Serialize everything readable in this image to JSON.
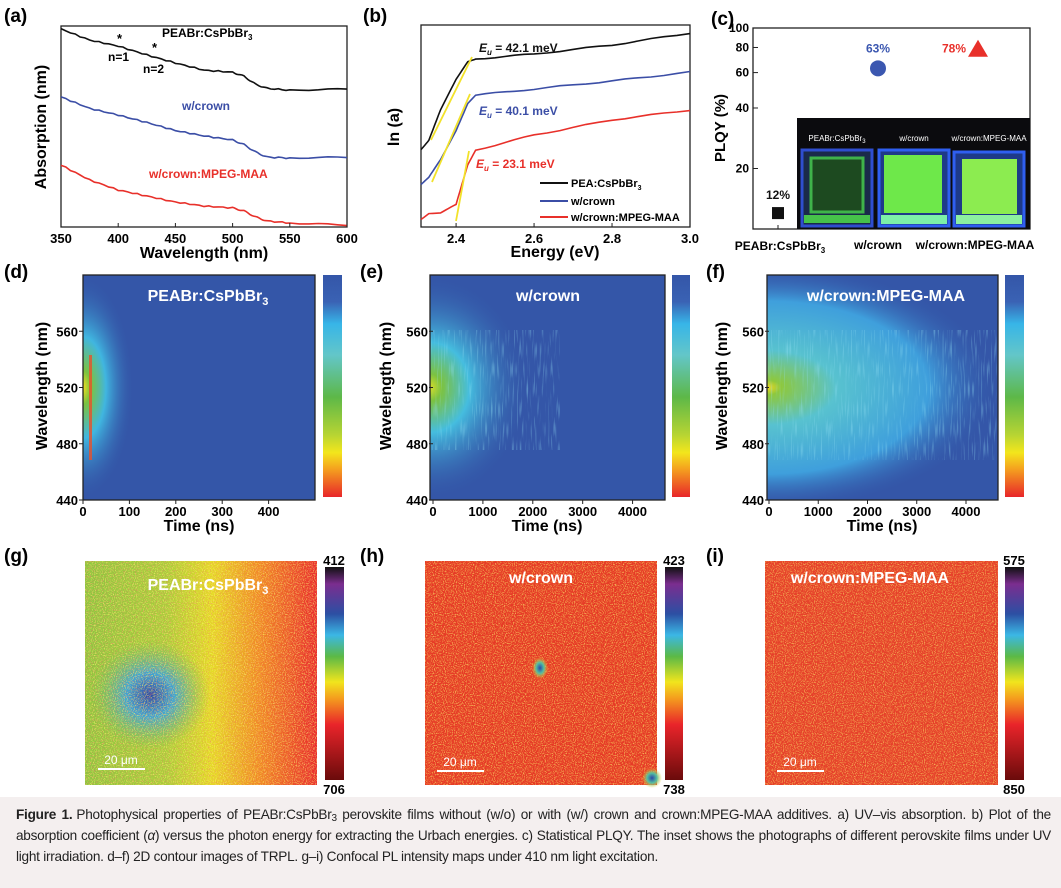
{
  "figure": {
    "panel_labels": [
      "(a)",
      "(b)",
      "(c)",
      "(d)",
      "(e)",
      "(f)",
      "(g)",
      "(h)",
      "(i)"
    ],
    "sample_names": {
      "pristine": {
        "main": "PEABr:CsPbBr",
        "sub": "3"
      },
      "crown": "w/crown",
      "crown_mpeg": "w/crown:MPEG-MAA"
    },
    "colors": {
      "pristine": "#111111",
      "crown": "#3b4ea6",
      "crown_mpeg": "#e8302a",
      "fit": "#f2e22a"
    }
  },
  "chart_data": [
    {
      "id": "a",
      "type": "line",
      "xlabel": "Wavelength (nm)",
      "ylabel": "Absorption (nm)",
      "xlim": [
        350,
        600
      ],
      "xticks": [
        "350",
        "400",
        "450",
        "500",
        "550",
        "600"
      ],
      "ylim": [
        0,
        1
      ],
      "annotations": {
        "star": "*",
        "n1": "n=1",
        "n2": "n=2",
        "title": {
          "main": "PEABr:CsPbBr",
          "sub": "3"
        },
        "crown": "w/crown",
        "crown_mpeg": "w/crown:MPEG-MAA"
      },
      "x": [
        350,
        375,
        400,
        425,
        450,
        475,
        500,
        510,
        520,
        530,
        550,
        600
      ],
      "series": [
        {
          "name": "PEABr:CsPbBr3",
          "color": "#111111",
          "values": [
            0.985,
            0.93,
            0.9,
            0.856,
            0.816,
            0.78,
            0.77,
            0.75,
            0.71,
            0.69,
            0.68,
            0.687
          ]
        },
        {
          "name": "w/crown",
          "color": "#3b4ea6",
          "values": [
            0.647,
            0.59,
            0.557,
            0.52,
            0.48,
            0.453,
            0.433,
            0.41,
            0.373,
            0.348,
            0.343,
            0.348
          ]
        },
        {
          "name": "w/crown:MPEG-MAA",
          "color": "#e8302a",
          "values": [
            0.308,
            0.234,
            0.184,
            0.154,
            0.124,
            0.104,
            0.095,
            0.08,
            0.05,
            0.03,
            0.02,
            0.01
          ]
        }
      ]
    },
    {
      "id": "b",
      "type": "line",
      "xlabel": "Energy (eV)",
      "ylabel": "ln (a)",
      "xlim": [
        2.31,
        3.0
      ],
      "xticks": [
        "2.4",
        "2.6",
        "2.8",
        "3.0"
      ],
      "ylim": [
        0,
        1
      ],
      "x": [
        2.31,
        2.33,
        2.36,
        2.4,
        2.43,
        2.45,
        2.6,
        2.8,
        3.0
      ],
      "series": [
        {
          "name": "PEA:CsPbBr3",
          "legend": {
            "main": "PEA:CsPbBr",
            "sub": "3"
          },
          "color": "#111111",
          "values": [
            0.386,
            0.431,
            0.579,
            0.728,
            0.817,
            0.832,
            0.856,
            0.901,
            0.96
          ]
        },
        {
          "name": "w/crown",
          "legend": {
            "main": "w/crown",
            "sub": ""
          },
          "color": "#3b4ea6",
          "values": [
            0.208,
            0.243,
            0.332,
            0.48,
            0.614,
            0.653,
            0.683,
            0.723,
            0.767
          ]
        },
        {
          "name": "w/crown:MPEG-MAA",
          "legend": {
            "main": "w/crown:MPEG-MAA",
            "sub": ""
          },
          "color": "#e8302a",
          "values": [
            0.04,
            0.069,
            0.069,
            0.109,
            0.307,
            0.381,
            0.455,
            0.53,
            0.579
          ]
        }
      ],
      "urbach": {
        "symbol": "E",
        "sub": "u",
        "labels": [
          " = 42.1 meV",
          " = 40.1 meV",
          " = 23.1 meV"
        ],
        "values_meV": [
          42.1,
          40.1,
          23.1
        ]
      },
      "legend_position": "bottom-right"
    },
    {
      "id": "c",
      "type": "scatter",
      "ylabel": "PLQY (%)",
      "yscale": "log",
      "ylim": [
        10,
        100
      ],
      "yticks": [
        "20",
        "40",
        "60",
        "80",
        "100"
      ],
      "categories": [
        {
          "main": "PEABr:CsPbBr",
          "sub": "3"
        },
        {
          "main": "w/crown",
          "sub": ""
        },
        {
          "main": "w/crown:MPEG-MAA",
          "sub": ""
        }
      ],
      "values": [
        12,
        63,
        78
      ],
      "value_labels": [
        "12%",
        "63%",
        "78%"
      ],
      "markers": [
        "square",
        "circle",
        "triangle"
      ],
      "colors": [
        "#111111",
        "#3b57b0",
        "#e8302a"
      ],
      "inset": {
        "labels": [
          {
            "main": "PEABr:CsPbBr",
            "sub": "3"
          },
          {
            "main": "w/crown",
            "sub": ""
          },
          {
            "main": "w/crown:MPEG-MAA",
            "sub": ""
          }
        ]
      }
    },
    {
      "id": "d",
      "type": "heatmap",
      "title": {
        "main": "PEABr:CsPbBr",
        "sub": "3"
      },
      "xlabel": "Time (ns)",
      "ylabel": "Wavelength (nm)",
      "xticks": [
        "0",
        "100",
        "200",
        "300",
        "400"
      ],
      "yticks": [
        "440",
        "480",
        "520",
        "560"
      ],
      "xlim": [
        0,
        500
      ],
      "ylim": [
        440,
        600
      ]
    },
    {
      "id": "e",
      "type": "heatmap",
      "title": {
        "main": "w/crown",
        "sub": ""
      },
      "xlabel": "Time (ns)",
      "ylabel": "Wavelength (nm)",
      "xticks": [
        "0",
        "1000",
        "2000",
        "3000",
        "4000"
      ],
      "yticks": [
        "440",
        "480",
        "520",
        "560"
      ],
      "xlim": [
        0,
        4650
      ],
      "ylim": [
        440,
        600
      ]
    },
    {
      "id": "f",
      "type": "heatmap",
      "title": {
        "main": "w/crown:MPEG-MAA",
        "sub": ""
      },
      "xlabel": "Time (ns)",
      "ylabel": "Wavelength (nm)",
      "xticks": [
        "0",
        "1000",
        "2000",
        "3000",
        "4000"
      ],
      "yticks": [
        "440",
        "480",
        "520",
        "560"
      ],
      "xlim": [
        0,
        4650
      ],
      "ylim": [
        440,
        600
      ]
    },
    {
      "id": "g",
      "type": "heatmap",
      "title": {
        "main": "PEABr:CsPbBr",
        "sub": "3"
      },
      "scalebar": "20 μm",
      "colorbar": {
        "max": "412",
        "min": "706"
      }
    },
    {
      "id": "h",
      "type": "heatmap",
      "title": {
        "main": "w/crown",
        "sub": ""
      },
      "scalebar": "20 μm",
      "colorbar": {
        "max": "423",
        "min": "738"
      }
    },
    {
      "id": "i",
      "type": "heatmap",
      "title": {
        "main": "w/crown:MPEG-MAA",
        "sub": ""
      },
      "scalebar": "20 μm",
      "colorbar": {
        "max": "575",
        "min": "850"
      }
    }
  ],
  "caption": {
    "label": "Figure 1.",
    "p1": "Photophysical properties of PEABr:CsPbBr",
    "p1_sub": "3",
    "p2": " perovskite films without (w/o) or with (w/) crown and crown:MPEG-MAA additives. a) UV–vis absorption. b) Plot of the absorption coefficient (",
    "alpha": "α",
    "p3": ") versus the photon energy for extracting the Urbach energies. c) Statistical PLQY. The inset shows the photographs of different perovskite films under UV light irradiation. d–f) 2D contour images of TRPL. g–i) Confocal PL intensity maps under 410 nm light excitation."
  }
}
